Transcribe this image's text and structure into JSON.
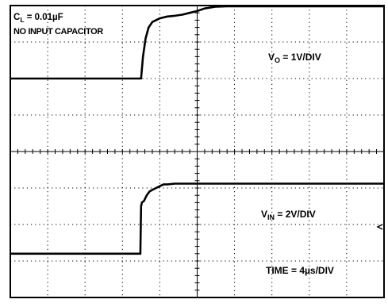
{
  "chart_data": {
    "type": "line",
    "annotations": {
      "cl_main": "C",
      "cl_sub": "L",
      "cl_value": " = 0.01µF",
      "no_input_cap": "NO INPUT CAPACITOR",
      "vo_main": "V",
      "vo_sub": "O",
      "vo_scale": " = 1V/DIV",
      "vin_main": "V",
      "vin_sub": "IN",
      "vin_scale": " = 2V/DIV",
      "time_scale": "TIME = 4µs/DIV"
    },
    "grid": {
      "x_divisions": 10,
      "y_divisions": 8,
      "minor_ticks_per_division": 5
    },
    "x_unit": "div",
    "y_unit": "div",
    "series": [
      {
        "x": [
          0,
          3.5,
          3.55,
          3.62,
          3.7,
          3.8,
          3.9,
          4.0,
          4.2,
          4.4,
          4.6,
          4.8,
          5.0,
          5.2,
          5.5,
          5.8,
          6.5,
          10
        ],
        "y": [
          6.0,
          6.0,
          6.6,
          7.1,
          7.4,
          7.55,
          7.6,
          7.65,
          7.7,
          7.72,
          7.75,
          7.8,
          7.85,
          7.92,
          7.97,
          7.98,
          7.98,
          7.98
        ]
      },
      {
        "x": [
          0,
          3.48,
          3.5,
          3.52,
          3.58,
          3.65,
          3.72,
          3.8,
          3.9,
          4.0,
          4.1,
          4.2,
          4.4,
          4.6,
          10
        ],
        "y": [
          1.2,
          1.2,
          2.5,
          2.6,
          2.65,
          2.8,
          2.9,
          2.95,
          3.0,
          3.05,
          3.1,
          3.1,
          3.12,
          3.12,
          3.12
        ]
      }
    ]
  }
}
